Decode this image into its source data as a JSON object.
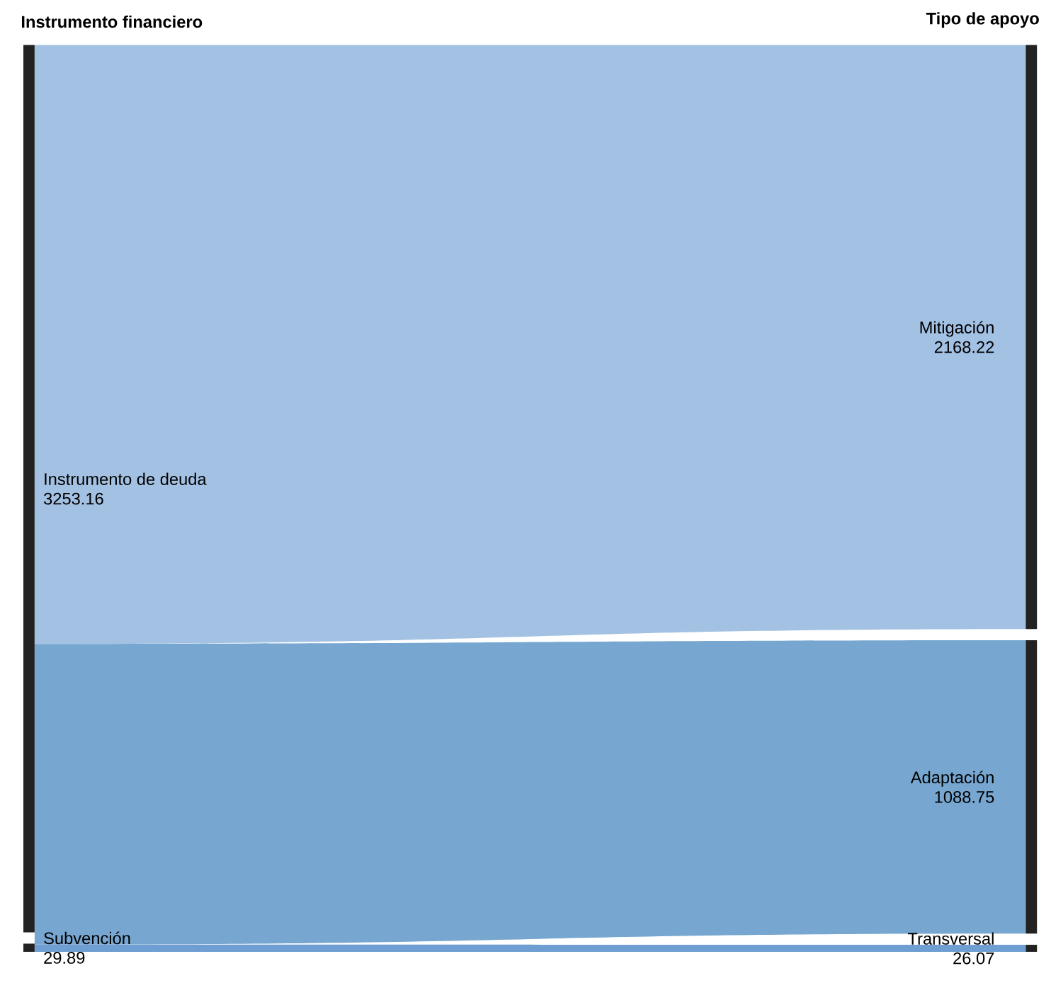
{
  "chart_data": {
    "type": "other",
    "categories": [
      "Instrumento de deuda",
      "Subvención",
      "Mitigación",
      "Adaptación",
      "Transversal"
    ],
    "colors": [
      null,
      null,
      "#a3c1e3",
      "#77a7d0",
      "#6f9fd2"
    ],
    "series": [
      {
        "name": "Instrumento financiero",
        "values": [
          3253.16,
          29.89,
          null,
          null,
          null
        ],
        "value_labels": [
          "3253.16",
          "29.89",
          null,
          null,
          null
        ]
      },
      {
        "name": "Tipo de apoyo",
        "values": [
          null,
          null,
          2168.22,
          1088.75,
          26.07
        ],
        "value_labels": [
          null,
          null,
          "2168.22",
          "1088.75",
          "26.07"
        ]
      }
    ]
  }
}
